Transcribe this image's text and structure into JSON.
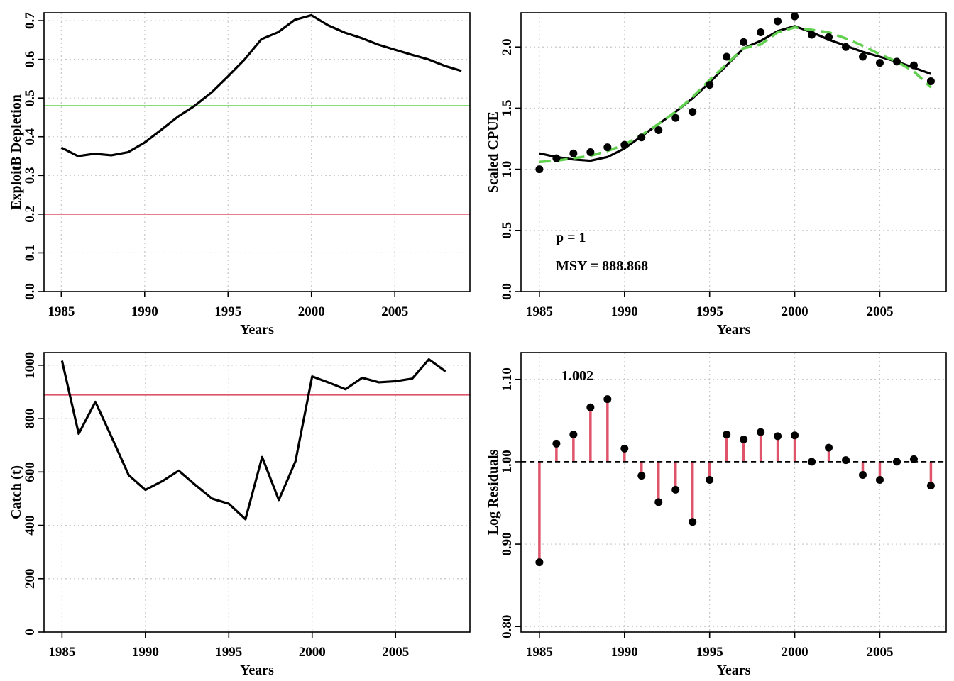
{
  "colors": {
    "line": "#000000",
    "grid": "#c8c8c8",
    "target_green": "#61d04f",
    "limit_red": "#df536b",
    "fit_green": "#61d04f"
  },
  "chart_data": [
    {
      "id": "depletion",
      "type": "line",
      "xlabel": "Years",
      "ylabel": "ExploitB Depletion",
      "xlim": [
        1983.964,
        2009.504
      ],
      "ylim": [
        0,
        0.7203
      ],
      "xticks": [
        1985,
        1990,
        1995,
        2000,
        2005
      ],
      "yticks": [
        0,
        0.1,
        0.2,
        0.3,
        0.4,
        0.5,
        0.6,
        0.7
      ],
      "yticklabels": [
        "0.0",
        "0.1",
        "0.2",
        "0.3",
        "0.4",
        "0.5",
        "0.6",
        "0.7"
      ],
      "grid": true,
      "hlines": [
        {
          "y": 0.48,
          "color": "target_green"
        },
        {
          "y": 0.2,
          "color": "limit_red"
        }
      ],
      "series": [
        {
          "x": [
            1985,
            1986,
            1987,
            1988,
            1989,
            1990,
            1991,
            1992,
            1993,
            1994,
            1995,
            1996,
            1997,
            1998,
            1999,
            2000,
            2001,
            2002,
            2003,
            2004,
            2005,
            2006,
            2007,
            2008,
            2009
          ],
          "values": [
            0.372,
            0.35,
            0.356,
            0.352,
            0.36,
            0.385,
            0.418,
            0.452,
            0.48,
            0.514,
            0.556,
            0.6,
            0.652,
            0.67,
            0.702,
            0.714,
            0.688,
            0.669,
            0.655,
            0.638,
            0.625,
            0.612,
            0.6,
            0.583,
            0.57
          ]
        }
      ]
    },
    {
      "id": "cpue",
      "type": "scatter",
      "xlabel": "Years",
      "ylabel": "Scaled CPUE",
      "xlim": [
        1983.92,
        2008.9
      ],
      "ylim": [
        0,
        2.2797
      ],
      "xticks": [
        1985,
        1990,
        1995,
        2000,
        2005
      ],
      "yticks": [
        0,
        0.5,
        1,
        1.5,
        2
      ],
      "yticklabels": [
        "0.0",
        "0.5",
        "1.0",
        "1.5",
        "2.0"
      ],
      "grid": true,
      "annotations": [
        "p = 1",
        "MSY = 888.868"
      ],
      "x": [
        1985,
        1986,
        1987,
        1988,
        1989,
        1990,
        1991,
        1992,
        1993,
        1994,
        1995,
        1996,
        1997,
        1998,
        1999,
        2000,
        2001,
        2002,
        2003,
        2004,
        2005,
        2006,
        2007,
        2008
      ],
      "observed": [
        1.0,
        1.09,
        1.13,
        1.14,
        1.18,
        1.2,
        1.26,
        1.32,
        1.42,
        1.47,
        1.69,
        1.92,
        2.04,
        2.12,
        2.21,
        2.25,
        2.1,
        2.08,
        2.0,
        1.92,
        1.87,
        1.88,
        1.85,
        1.72
      ],
      "predicted": [
        1.13,
        1.1,
        1.08,
        1.07,
        1.1,
        1.17,
        1.27,
        1.37,
        1.47,
        1.58,
        1.71,
        1.85,
        1.99,
        2.05,
        2.13,
        2.17,
        2.12,
        2.06,
        2.01,
        1.96,
        1.92,
        1.88,
        1.83,
        1.78
      ],
      "fitted_smooth": [
        1.06,
        1.07,
        1.09,
        1.11,
        1.15,
        1.2,
        1.28,
        1.37,
        1.47,
        1.59,
        1.73,
        1.86,
        1.99,
        2.02,
        2.12,
        2.16,
        2.14,
        2.12,
        2.07,
        2.01,
        1.94,
        1.88,
        1.8,
        1.67
      ]
    },
    {
      "id": "catch",
      "type": "line",
      "xlabel": "Years",
      "ylabel": "Catch (t)",
      "xlim": [
        1983.92,
        2009.46
      ],
      "ylim": [
        0,
        1047.5
      ],
      "xticks": [
        1985,
        1990,
        1995,
        2000,
        2005
      ],
      "yticks": [
        0,
        200,
        400,
        600,
        800,
        1000
      ],
      "yticklabels": [
        "0",
        "200",
        "400",
        "600",
        "800",
        "1000"
      ],
      "grid": true,
      "hlines": [
        {
          "y": 888.868,
          "color": "limit_red"
        }
      ],
      "series": [
        {
          "x": [
            1985,
            1986,
            1987,
            1988,
            1989,
            1990,
            1991,
            1992,
            1993,
            1994,
            1995,
            1996,
            1997,
            1998,
            1999,
            2000,
            2001,
            2002,
            2003,
            2004,
            2005,
            2006,
            2007,
            2008
          ],
          "values": [
            1017,
            743,
            863,
            727,
            588,
            533,
            565,
            605,
            551,
            500,
            481,
            423,
            656,
            495,
            640,
            958,
            935,
            910,
            953,
            936,
            940,
            950,
            1022,
            977
          ]
        }
      ]
    },
    {
      "id": "residuals",
      "type": "scatter",
      "xlabel": "Years",
      "ylabel": "Log Residuals",
      "xlim": [
        1983.92,
        2008.9
      ],
      "ylim": [
        0.7933,
        1.1325
      ],
      "xticks": [
        1985,
        1990,
        1995,
        2000,
        2005
      ],
      "yticks": [
        0.8,
        0.9,
        1.0,
        1.1
      ],
      "yticklabels": [
        "0.80",
        "0.90",
        "1.00",
        "1.10"
      ],
      "grid": true,
      "reference_line": 1.0,
      "annotations": [
        "1.002"
      ],
      "x": [
        1985,
        1986,
        1987,
        1988,
        1989,
        1990,
        1991,
        1992,
        1993,
        1994,
        1995,
        1996,
        1997,
        1998,
        1999,
        2000,
        2001,
        2002,
        2003,
        2004,
        2005,
        2006,
        2007,
        2008
      ],
      "values": [
        0.878,
        1.022,
        1.033,
        1.066,
        1.076,
        1.016,
        0.983,
        0.951,
        0.966,
        0.927,
        0.978,
        1.033,
        1.027,
        1.036,
        1.031,
        1.032,
        1.0,
        1.017,
        1.002,
        0.984,
        0.978,
        1.0,
        1.003,
        0.971
      ]
    }
  ]
}
